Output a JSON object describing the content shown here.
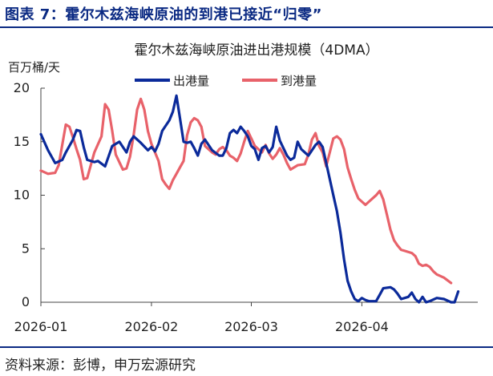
{
  "figure": {
    "title": "图表 7：霍尔木兹海峡原油的到港已接近“归零”",
    "source": "资料来源：彭博，申万宏源研究"
  },
  "colors": {
    "header": "#0b2a83",
    "outbound": "#0b2a9a",
    "inbound": "#e8626a"
  },
  "chart_data": {
    "type": "line",
    "title": "霍尔木兹海峡原油进出港规模（4DMA）",
    "unit_label": "百万桶/天",
    "xlabel": "",
    "ylabel": "百万桶/天",
    "ylim": [
      0,
      20
    ],
    "xlim": [
      "2026-01-01",
      "2026-04-29"
    ],
    "y_ticks": [
      "0",
      "5",
      "10",
      "15",
      "20"
    ],
    "x_ticks": [
      {
        "date": "2026-01-01",
        "label": "2026-01"
      },
      {
        "date": "2026-02-01",
        "label": "2026-02"
      },
      {
        "date": "2026-03-01",
        "label": "2026-03"
      },
      {
        "date": "2026-04-01",
        "label": "2026-04"
      }
    ],
    "grid": false,
    "legend_position": "top-center",
    "series": [
      {
        "name": "出港量",
        "color": "#0b2a9a",
        "points": [
          [
            "2026-01-01",
            15.7
          ],
          [
            "2026-01-03",
            14.2
          ],
          [
            "2026-01-05",
            13.0
          ],
          [
            "2026-01-07",
            13.3
          ],
          [
            "2026-01-08",
            14.0
          ],
          [
            "2026-01-10",
            15.2
          ],
          [
            "2026-01-11",
            16.1
          ],
          [
            "2026-01-12",
            16.0
          ],
          [
            "2026-01-13",
            14.5
          ],
          [
            "2026-01-14",
            13.3
          ],
          [
            "2026-01-16",
            13.1
          ],
          [
            "2026-01-17",
            13.2
          ],
          [
            "2026-01-19",
            12.7
          ],
          [
            "2026-01-21",
            14.6
          ],
          [
            "2026-01-23",
            15.0
          ],
          [
            "2026-01-24",
            14.5
          ],
          [
            "2026-01-25",
            14.0
          ],
          [
            "2026-01-26",
            15.0
          ],
          [
            "2026-01-27",
            15.5
          ],
          [
            "2026-01-29",
            14.9
          ],
          [
            "2026-01-31",
            14.2
          ],
          [
            "2026-02-01",
            14.5
          ],
          [
            "2026-02-02",
            14.1
          ],
          [
            "2026-02-03",
            14.8
          ],
          [
            "2026-02-04",
            16.0
          ],
          [
            "2026-02-06",
            17.0
          ],
          [
            "2026-02-07",
            17.8
          ],
          [
            "2026-02-08",
            19.3
          ],
          [
            "2026-02-09",
            17.2
          ],
          [
            "2026-02-10",
            15.0
          ],
          [
            "2026-02-11",
            14.9
          ],
          [
            "2026-02-12",
            15.0
          ],
          [
            "2026-02-13",
            14.4
          ],
          [
            "2026-02-14",
            13.7
          ],
          [
            "2026-02-15",
            14.8
          ],
          [
            "2026-02-16",
            15.2
          ],
          [
            "2026-02-17",
            14.7
          ],
          [
            "2026-02-18",
            14.2
          ],
          [
            "2026-02-20",
            13.7
          ],
          [
            "2026-02-21",
            13.7
          ],
          [
            "2026-02-22",
            14.4
          ],
          [
            "2026-02-23",
            15.8
          ],
          [
            "2026-02-24",
            16.1
          ],
          [
            "2026-02-25",
            15.8
          ],
          [
            "2026-02-26",
            16.4
          ],
          [
            "2026-02-27",
            16.0
          ],
          [
            "2026-02-28",
            15.5
          ],
          [
            "2026-03-01",
            14.6
          ],
          [
            "2026-03-02",
            14.3
          ],
          [
            "2026-03-03",
            13.3
          ],
          [
            "2026-03-04",
            14.4
          ],
          [
            "2026-03-05",
            14.6
          ],
          [
            "2026-03-06",
            14.0
          ],
          [
            "2026-03-07",
            14.5
          ],
          [
            "2026-03-08",
            16.4
          ],
          [
            "2026-03-09",
            15.1
          ],
          [
            "2026-03-11",
            13.7
          ],
          [
            "2026-03-12",
            13.3
          ],
          [
            "2026-03-13",
            13.5
          ],
          [
            "2026-03-14",
            15.0
          ],
          [
            "2026-03-15",
            14.3
          ],
          [
            "2026-03-17",
            13.7
          ],
          [
            "2026-03-19",
            14.7
          ],
          [
            "2026-03-20",
            15.0
          ],
          [
            "2026-03-21",
            14.5
          ],
          [
            "2026-03-23",
            11.5
          ],
          [
            "2026-03-24",
            10.0
          ],
          [
            "2026-03-25",
            8.5
          ],
          [
            "2026-03-26",
            6.5
          ],
          [
            "2026-03-27",
            4.0
          ],
          [
            "2026-03-28",
            2.0
          ],
          [
            "2026-03-29",
            1.0
          ],
          [
            "2026-03-30",
            0.3
          ],
          [
            "2026-03-31",
            0.1
          ],
          [
            "2026-04-01",
            0.4
          ],
          [
            "2026-04-02",
            0.2
          ],
          [
            "2026-04-03",
            0.1
          ],
          [
            "2026-04-05",
            0.1
          ],
          [
            "2026-04-06",
            0.7
          ],
          [
            "2026-04-07",
            1.3
          ],
          [
            "2026-04-09",
            1.4
          ],
          [
            "2026-04-10",
            1.2
          ],
          [
            "2026-04-11",
            0.8
          ],
          [
            "2026-04-12",
            0.3
          ],
          [
            "2026-04-14",
            0.5
          ],
          [
            "2026-04-15",
            0.9
          ],
          [
            "2026-04-16",
            0.3
          ],
          [
            "2026-04-17",
            0.0
          ],
          [
            "2026-04-18",
            0.5
          ],
          [
            "2026-04-19",
            0.0
          ],
          [
            "2026-04-20",
            0.1
          ],
          [
            "2026-04-22",
            0.4
          ],
          [
            "2026-04-24",
            0.3
          ],
          [
            "2026-04-26",
            0.0
          ],
          [
            "2026-04-27",
            0.0
          ],
          [
            "2026-04-28",
            1.0
          ]
        ]
      },
      {
        "name": "到港量",
        "color": "#e8626a",
        "points": [
          [
            "2026-01-01",
            12.3
          ],
          [
            "2026-01-03",
            12.0
          ],
          [
            "2026-01-05",
            12.1
          ],
          [
            "2026-01-06",
            12.8
          ],
          [
            "2026-01-08",
            16.6
          ],
          [
            "2026-01-09",
            16.4
          ],
          [
            "2026-01-10",
            15.4
          ],
          [
            "2026-01-11",
            14.3
          ],
          [
            "2026-01-12",
            13.3
          ],
          [
            "2026-01-13",
            11.5
          ],
          [
            "2026-01-14",
            11.6
          ],
          [
            "2026-01-16",
            14.0
          ],
          [
            "2026-01-18",
            15.5
          ],
          [
            "2026-01-19",
            18.5
          ],
          [
            "2026-01-20",
            18.0
          ],
          [
            "2026-01-21",
            16.0
          ],
          [
            "2026-01-22",
            13.8
          ],
          [
            "2026-01-24",
            12.4
          ],
          [
            "2026-01-25",
            12.5
          ],
          [
            "2026-01-26",
            13.6
          ],
          [
            "2026-01-27",
            15.6
          ],
          [
            "2026-01-28",
            18.0
          ],
          [
            "2026-01-29",
            19.0
          ],
          [
            "2026-01-30",
            18.0
          ],
          [
            "2026-01-31",
            16.0
          ],
          [
            "2026-02-01",
            14.8
          ],
          [
            "2026-02-02",
            14.0
          ],
          [
            "2026-02-03",
            13.2
          ],
          [
            "2026-02-04",
            11.5
          ],
          [
            "2026-02-05",
            11.0
          ],
          [
            "2026-02-06",
            10.6
          ],
          [
            "2026-02-07",
            11.4
          ],
          [
            "2026-02-08",
            12.0
          ],
          [
            "2026-02-09",
            12.6
          ],
          [
            "2026-02-10",
            13.2
          ],
          [
            "2026-02-11",
            15.6
          ],
          [
            "2026-02-12",
            16.8
          ],
          [
            "2026-02-13",
            17.2
          ],
          [
            "2026-02-14",
            17.0
          ],
          [
            "2026-02-15",
            16.4
          ],
          [
            "2026-02-16",
            14.6
          ],
          [
            "2026-02-17",
            14.3
          ],
          [
            "2026-02-18",
            14.0
          ],
          [
            "2026-02-19",
            13.8
          ],
          [
            "2026-02-20",
            14.3
          ],
          [
            "2026-02-21",
            14.5
          ],
          [
            "2026-02-22",
            14.2
          ],
          [
            "2026-02-23",
            13.7
          ],
          [
            "2026-02-24",
            13.5
          ],
          [
            "2026-02-25",
            13.2
          ],
          [
            "2026-02-26",
            13.9
          ],
          [
            "2026-02-27",
            15.0
          ],
          [
            "2026-02-28",
            16.0
          ],
          [
            "2026-03-01",
            15.3
          ],
          [
            "2026-03-02",
            14.6
          ],
          [
            "2026-03-04",
            14.0
          ],
          [
            "2026-03-05",
            14.7
          ],
          [
            "2026-03-06",
            13.9
          ],
          [
            "2026-03-07",
            13.4
          ],
          [
            "2026-03-08",
            13.8
          ],
          [
            "2026-03-09",
            14.4
          ],
          [
            "2026-03-10",
            13.8
          ],
          [
            "2026-03-11",
            13.0
          ],
          [
            "2026-03-12",
            12.4
          ],
          [
            "2026-03-14",
            12.8
          ],
          [
            "2026-03-16",
            12.9
          ],
          [
            "2026-03-17",
            13.8
          ],
          [
            "2026-03-18",
            15.2
          ],
          [
            "2026-03-19",
            15.8
          ],
          [
            "2026-03-20",
            14.6
          ],
          [
            "2026-03-21",
            14.0
          ],
          [
            "2026-03-22",
            12.7
          ],
          [
            "2026-03-23",
            14.0
          ],
          [
            "2026-03-24",
            15.3
          ],
          [
            "2026-03-25",
            15.5
          ],
          [
            "2026-03-26",
            15.2
          ],
          [
            "2026-03-27",
            14.3
          ],
          [
            "2026-03-28",
            12.6
          ],
          [
            "2026-03-29",
            11.5
          ],
          [
            "2026-03-30",
            10.5
          ],
          [
            "2026-03-31",
            9.7
          ],
          [
            "2026-04-01",
            9.4
          ],
          [
            "2026-04-02",
            9.1
          ],
          [
            "2026-04-03",
            9.4
          ],
          [
            "2026-04-05",
            10.0
          ],
          [
            "2026-04-06",
            10.4
          ],
          [
            "2026-04-07",
            9.6
          ],
          [
            "2026-04-08",
            8.2
          ],
          [
            "2026-04-09",
            6.8
          ],
          [
            "2026-04-10",
            5.8
          ],
          [
            "2026-04-11",
            5.3
          ],
          [
            "2026-04-12",
            4.9
          ],
          [
            "2026-04-13",
            4.8
          ],
          [
            "2026-04-15",
            4.6
          ],
          [
            "2026-04-16",
            4.3
          ],
          [
            "2026-04-17",
            3.6
          ],
          [
            "2026-04-18",
            3.4
          ],
          [
            "2026-04-19",
            3.5
          ],
          [
            "2026-04-20",
            3.3
          ],
          [
            "2026-04-21",
            2.9
          ],
          [
            "2026-04-22",
            2.6
          ],
          [
            "2026-04-24",
            2.3
          ],
          [
            "2026-04-26",
            1.8
          ]
        ]
      }
    ]
  }
}
